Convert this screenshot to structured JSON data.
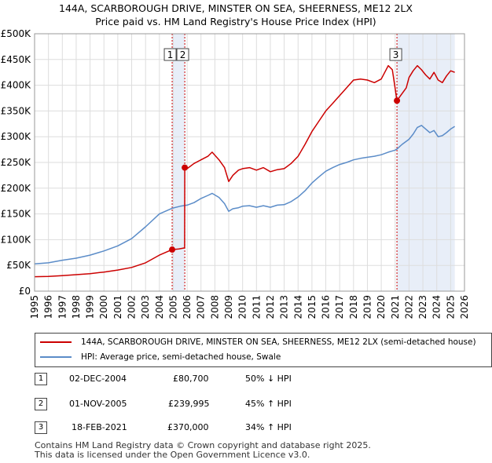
{
  "title_line1": "144A, SCARBOROUGH DRIVE, MINSTER ON SEA, SHEERNESS, ME12 2LX",
  "title_line2": "Price paid vs. HM Land Registry's House Price Index (HPI)",
  "chart_data": {
    "type": "line",
    "title": "144A, SCARBOROUGH DRIVE, MINSTER ON SEA, SHEERNESS, ME12 2LX",
    "subtitle": "Price paid vs. HM Land Registry's House Price Index (HPI)",
    "xlim": [
      1995,
      2026
    ],
    "ylim": [
      0,
      500000
    ],
    "x_ticks": [
      1995,
      1996,
      1997,
      1998,
      1999,
      2000,
      2001,
      2002,
      2003,
      2004,
      2005,
      2006,
      2007,
      2008,
      2009,
      2010,
      2011,
      2012,
      2013,
      2014,
      2015,
      2016,
      2017,
      2018,
      2019,
      2020,
      2021,
      2022,
      2023,
      2024,
      2025,
      2026
    ],
    "y_ticks": [
      0,
      50000,
      100000,
      150000,
      200000,
      250000,
      300000,
      350000,
      400000,
      450000,
      500000
    ],
    "y_tick_labels": [
      "£0",
      "£50K",
      "£100K",
      "£150K",
      "£200K",
      "£250K",
      "£300K",
      "£350K",
      "£400K",
      "£450K",
      "£500K"
    ],
    "grid": true,
    "shaded_ranges": [
      [
        2004.92,
        2005.83
      ],
      [
        2021.13,
        2025.3
      ]
    ],
    "series": [
      {
        "name": "144A, SCARBOROUGH DRIVE, MINSTER ON SEA, SHEERNESS, ME12 2LX (semi-detached house)",
        "color": "#cc0000",
        "x": [
          1995,
          1996,
          1997,
          1998,
          1999,
          2000,
          2001,
          2002,
          2003,
          2004,
          2004.92,
          2005.4,
          2005.82,
          2005.83,
          2006,
          2006.5,
          2007,
          2007.5,
          2007.8,
          2008.3,
          2008.7,
          2009,
          2009.3,
          2009.7,
          2010,
          2010.5,
          2011,
          2011.5,
          2012,
          2012.5,
          2013,
          2013.5,
          2014,
          2014.5,
          2015,
          2015.5,
          2016,
          2016.5,
          2017,
          2017.5,
          2018,
          2018.5,
          2019,
          2019.5,
          2020,
          2020.5,
          2020.8,
          2021.13,
          2021.4,
          2021.8,
          2022,
          2022.3,
          2022.6,
          2022.9,
          2023.2,
          2023.5,
          2023.8,
          2024.1,
          2024.4,
          2024.7,
          2025,
          2025.3
        ],
        "y": [
          28000,
          28500,
          30000,
          32000,
          34000,
          37000,
          41000,
          46000,
          55000,
          70000,
          80700,
          82000,
          84000,
          239995,
          238000,
          248000,
          255000,
          262000,
          270000,
          255000,
          240000,
          213000,
          225000,
          235000,
          238000,
          240000,
          235000,
          240000,
          232000,
          236000,
          238000,
          248000,
          262000,
          285000,
          310000,
          330000,
          350000,
          365000,
          380000,
          395000,
          410000,
          412000,
          410000,
          405000,
          412000,
          438000,
          430000,
          370000,
          380000,
          395000,
          415000,
          428000,
          438000,
          430000,
          420000,
          412000,
          425000,
          410000,
          405000,
          418000,
          428000,
          425000
        ]
      },
      {
        "name": "HPI: Average price, semi-detached house, Swale",
        "color": "#5b8cc8",
        "x": [
          1995,
          1996,
          1997,
          1998,
          1999,
          2000,
          2001,
          2002,
          2003,
          2004,
          2004.92,
          2005.5,
          2006,
          2006.5,
          2007,
          2007.5,
          2007.8,
          2008.3,
          2008.7,
          2009,
          2009.3,
          2009.7,
          2010,
          2010.5,
          2011,
          2011.5,
          2012,
          2012.5,
          2013,
          2013.5,
          2014,
          2014.5,
          2015,
          2015.5,
          2016,
          2016.5,
          2017,
          2017.5,
          2018,
          2018.5,
          2019,
          2019.5,
          2020,
          2020.5,
          2021,
          2021.13,
          2021.5,
          2022,
          2022.3,
          2022.6,
          2022.9,
          2023.2,
          2023.5,
          2023.8,
          2024.1,
          2024.4,
          2024.7,
          2025,
          2025.3
        ],
        "y": [
          53000,
          55000,
          60000,
          64000,
          70000,
          78000,
          88000,
          102000,
          125000,
          150000,
          161000,
          165000,
          167000,
          172000,
          180000,
          186000,
          190000,
          182000,
          170000,
          155000,
          160000,
          162000,
          165000,
          166000,
          163000,
          166000,
          163000,
          167000,
          168000,
          174000,
          183000,
          195000,
          210000,
          222000,
          233000,
          240000,
          246000,
          250000,
          255000,
          258000,
          260000,
          262000,
          265000,
          270000,
          274000,
          276000,
          285000,
          295000,
          305000,
          318000,
          322000,
          315000,
          308000,
          312000,
          300000,
          302000,
          308000,
          315000,
          320000
        ]
      }
    ],
    "transactions": [
      {
        "num": "1",
        "date": "02-DEC-2004",
        "x": 2004.92,
        "price": 80700,
        "price_label": "£80,700",
        "hpi": "50% ↓ HPI"
      },
      {
        "num": "2",
        "date": "01-NOV-2005",
        "x": 2005.83,
        "price": 239995,
        "price_label": "£239,995",
        "hpi": "45% ↑ HPI"
      },
      {
        "num": "3",
        "date": "18-FEB-2021",
        "x": 2021.13,
        "price": 370000,
        "price_label": "£370,000",
        "hpi": "34% ↑ HPI"
      }
    ]
  },
  "legend": {
    "red_label": "144A, SCARBOROUGH DRIVE, MINSTER ON SEA, SHEERNESS, ME12 2LX (semi-detached house)",
    "blue_label": "HPI: Average price, semi-detached house, Swale"
  },
  "footer_line1": "Contains HM Land Registry data © Crown copyright and database right 2025.",
  "footer_line2": "This data is licensed under the Open Government Licence v3.0."
}
